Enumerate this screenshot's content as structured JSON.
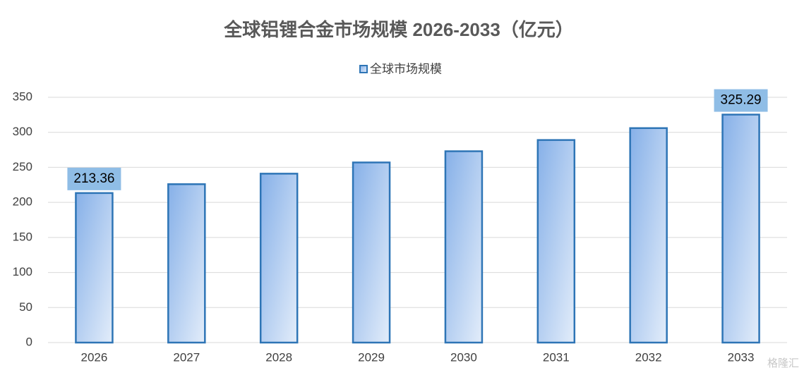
{
  "chart_data": {
    "type": "bar",
    "title": "全球铝锂合金市场规模 2026-2033（亿元）",
    "categories": [
      "2026",
      "2027",
      "2028",
      "2029",
      "2030",
      "2031",
      "2032",
      "2033"
    ],
    "series": [
      {
        "name": "全球市场规模",
        "color": "#2e75b6",
        "values": [
          213.36,
          226,
          241,
          257,
          273,
          289,
          306,
          325.29
        ],
        "value_labels": [
          "213.36",
          null,
          null,
          null,
          null,
          null,
          null,
          "325.29"
        ]
      }
    ],
    "ylim": [
      0,
      350
    ],
    "yticks": [
      0,
      50,
      100,
      150,
      200,
      250,
      300,
      350
    ],
    "grid": true,
    "legend": "top",
    "watermark": "格隆汇"
  }
}
